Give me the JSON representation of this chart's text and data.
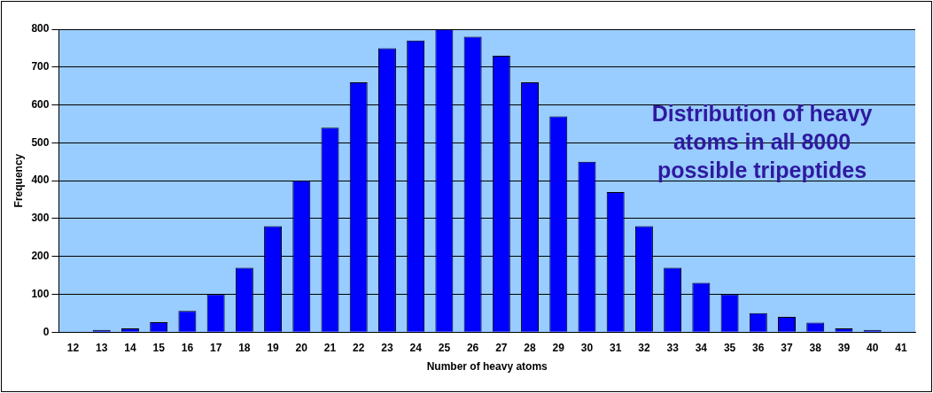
{
  "chart_data": {
    "type": "bar",
    "xlabel": "Number of heavy atoms",
    "ylabel": "Frequency",
    "categories": [
      "12",
      "13",
      "14",
      "15",
      "16",
      "17",
      "18",
      "19",
      "20",
      "21",
      "22",
      "23",
      "24",
      "25",
      "26",
      "27",
      "28",
      "29",
      "30",
      "31",
      "32",
      "33",
      "34",
      "35",
      "36",
      "37",
      "38",
      "39",
      "40",
      "41"
    ],
    "values": [
      0,
      6,
      10,
      26,
      56,
      100,
      170,
      280,
      400,
      540,
      660,
      750,
      770,
      800,
      780,
      730,
      660,
      570,
      450,
      370,
      280,
      170,
      130,
      100,
      50,
      40,
      25,
      10,
      6,
      0
    ],
    "color": "#0000ff",
    "ylim": [
      0,
      800
    ],
    "yticks": [
      0,
      100,
      200,
      300,
      400,
      500,
      600,
      700,
      800
    ],
    "grid": "y",
    "annotations": [
      "Distribution of heavy atoms in all 8000 possible tripeptides"
    ]
  }
}
